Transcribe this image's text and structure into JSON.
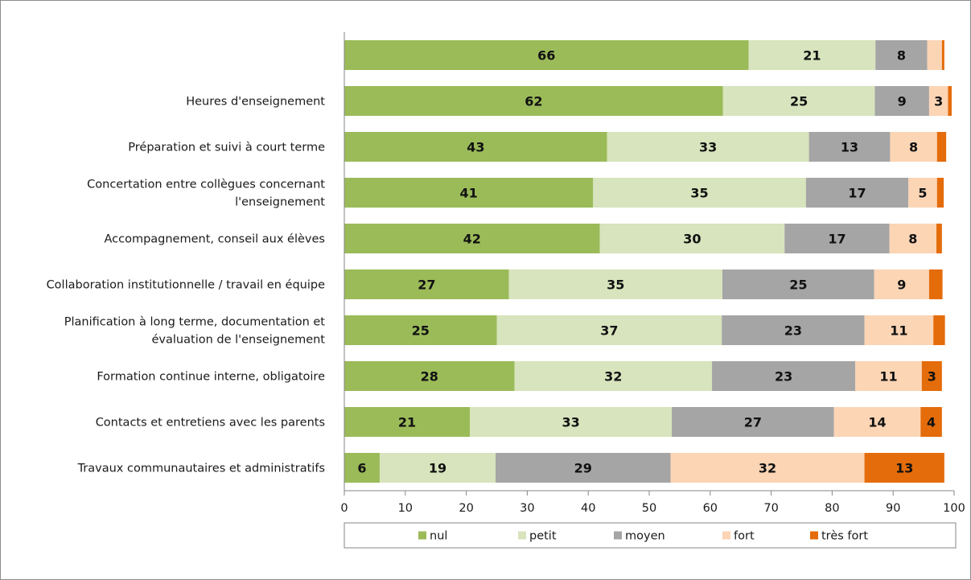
{
  "chart_data": {
    "type": "bar",
    "orientation": "horizontal",
    "stacked": true,
    "title": "",
    "xlabel": "",
    "ylabel": "",
    "xlim": [
      0,
      100
    ],
    "xticks": [
      0,
      10,
      20,
      30,
      40,
      50,
      60,
      70,
      80,
      90,
      100
    ],
    "grid": false,
    "legend_position": "bottom",
    "categories": [
      "",
      "Heures d'enseignement",
      "Préparation et suivi à court terme",
      [
        "Concertation entre collègues concernant",
        "l'enseignement"
      ],
      "Accompagnement, conseil aux élèves",
      "Collaboration institutionnelle / travail en équipe",
      [
        "Planification à long terme, documentation et",
        "évaluation de l'enseignement"
      ],
      "Formation continue interne, obligatoire",
      "Contacts et entretiens avec les parents",
      "Travaux communautaires et administratifs"
    ],
    "series": [
      {
        "name": "nul",
        "color": "#9bbb59",
        "values": [
          66.3,
          62.1,
          43.1,
          40.8,
          41.9,
          27.0,
          25.0,
          27.9,
          20.6,
          5.8
        ],
        "labels": [
          "66",
          "62",
          "43",
          "41",
          "42",
          "27",
          "25",
          "28",
          "21",
          "6"
        ]
      },
      {
        "name": "petit",
        "color": "#d7e4bd",
        "values": [
          20.8,
          24.9,
          33.1,
          34.9,
          30.3,
          35.0,
          36.9,
          32.4,
          33.1,
          19.0
        ],
        "labels": [
          "21",
          "25",
          "33",
          "35",
          "30",
          "35",
          "37",
          "32",
          "33",
          "19"
        ]
      },
      {
        "name": "moyen",
        "color": "#a5a5a5",
        "values": [
          8.5,
          8.9,
          13.3,
          16.8,
          17.2,
          24.9,
          23.4,
          23.5,
          26.6,
          28.7
        ],
        "labels": [
          "8",
          "9",
          "13",
          "17",
          "17",
          "25",
          "23",
          "23",
          "27",
          "29"
        ]
      },
      {
        "name": "fort",
        "color": "#fcd5b5",
        "values": [
          2.4,
          3.1,
          7.7,
          4.7,
          7.7,
          9.0,
          11.3,
          10.9,
          14.2,
          31.8
        ],
        "labels": [
          "",
          "3",
          "8",
          "5",
          "8",
          "9",
          "11",
          "11",
          "14",
          "32"
        ]
      },
      {
        "name": "très fort",
        "color": "#e46c0a",
        "values": [
          0.4,
          0.6,
          1.5,
          1.1,
          0.9,
          2.2,
          1.9,
          3.3,
          3.5,
          13.1
        ],
        "labels": [
          "",
          "",
          "",
          "",
          "",
          "",
          "",
          "3",
          "4",
          "13"
        ]
      }
    ]
  }
}
